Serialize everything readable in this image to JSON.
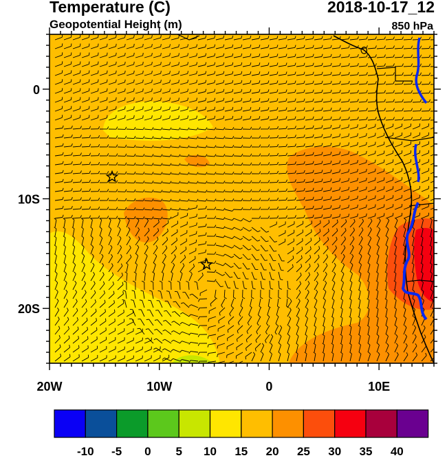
{
  "header": {
    "title": "Temperature (C)",
    "subtitle": "Geopotential Height (m)",
    "datetime": "2018-10-17_12",
    "level": "850 hPa"
  },
  "axes": {
    "lon_ticks": [
      {
        "lon": -20,
        "label": "20W"
      },
      {
        "lon": -10,
        "label": "10W"
      },
      {
        "lon": 0,
        "label": "0"
      },
      {
        "lon": 10,
        "label": "10E"
      }
    ],
    "lat_ticks": [
      {
        "lat": 0,
        "label": "0"
      },
      {
        "lat": -10,
        "label": "10S"
      },
      {
        "lat": -20,
        "label": "20S"
      }
    ],
    "lon_range": [
      -20,
      15
    ],
    "lat_range": [
      -25,
      5
    ]
  },
  "markers": [
    {
      "name": "star-marker-1",
      "lon": -14.3,
      "lat": -8
    },
    {
      "name": "star-marker-2",
      "lon": -5.7,
      "lat": -16
    }
  ],
  "colorbar": {
    "colors": [
      "#0a00f5",
      "#0a4f9a",
      "#0b9b2a",
      "#5cc81c",
      "#c8e600",
      "#ffe600",
      "#ffbe00",
      "#fd9000",
      "#fc4e0c",
      "#f50010",
      "#a8003c",
      "#6a0090"
    ],
    "labels": [
      "-10",
      "-5",
      "0",
      "5",
      "10",
      "15",
      "20",
      "25",
      "30",
      "35",
      "40"
    ]
  },
  "field_colors": {
    "base": "#ffbe00",
    "light": "#ffe600",
    "warm": "#fd9000",
    "hot": "#fc4e0c",
    "very_hot": "#f50010",
    "cool": "#c8e600",
    "river": "#0a28f0"
  }
}
